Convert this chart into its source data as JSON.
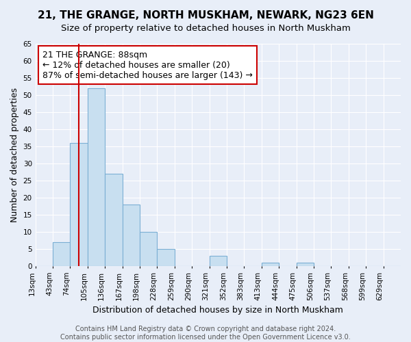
{
  "title": "21, THE GRANGE, NORTH MUSKHAM, NEWARK, NG23 6EN",
  "subtitle": "Size of property relative to detached houses in North Muskham",
  "xlabel": "Distribution of detached houses by size in North Muskham",
  "ylabel": "Number of detached properties",
  "bar_fill_color": "#c8dff0",
  "bar_edge_color": "#7bafd4",
  "vline_color": "#cc0000",
  "bin_labels": [
    "13sqm",
    "43sqm",
    "74sqm",
    "105sqm",
    "136sqm",
    "167sqm",
    "198sqm",
    "228sqm",
    "259sqm",
    "290sqm",
    "321sqm",
    "352sqm",
    "383sqm",
    "413sqm",
    "444sqm",
    "475sqm",
    "506sqm",
    "537sqm",
    "568sqm",
    "599sqm",
    "629sqm"
  ],
  "bar_values": [
    0,
    7,
    36,
    52,
    27,
    18,
    10,
    5,
    0,
    0,
    3,
    0,
    0,
    1,
    0,
    1,
    0,
    0,
    0,
    0,
    0
  ],
  "vline_position": 2.5,
  "ylim": [
    0,
    65
  ],
  "yticks": [
    0,
    5,
    10,
    15,
    20,
    25,
    30,
    35,
    40,
    45,
    50,
    55,
    60,
    65
  ],
  "annotation_line1": "21 THE GRANGE: 88sqm",
  "annotation_line2": "← 12% of detached houses are smaller (20)",
  "annotation_line3": "87% of semi-detached houses are larger (143) →",
  "footer_line1": "Contains HM Land Registry data © Crown copyright and database right 2024.",
  "footer_line2": "Contains public sector information licensed under the Open Government Licence v3.0.",
  "background_color": "#e8eef8",
  "grid_color": "#ffffff",
  "title_fontsize": 11,
  "subtitle_fontsize": 9.5,
  "axis_label_fontsize": 9,
  "tick_fontsize": 7.5,
  "annotation_fontsize": 9,
  "footer_fontsize": 7
}
